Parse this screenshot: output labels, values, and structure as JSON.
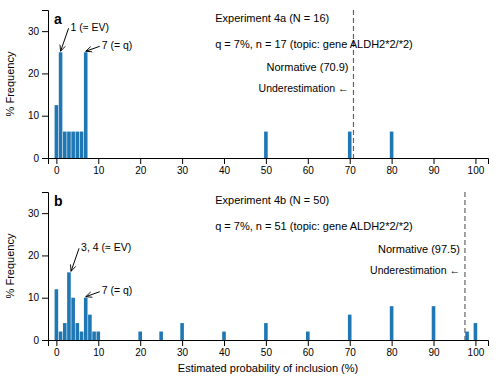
{
  "chart_data": [
    {
      "type": "bar",
      "panel_label": "a",
      "title": "Experiment 4a (N = 16)",
      "subtitle": "q = 7%, n = 17 (topic: gene ALDH2*2/*2)",
      "ylabel": "% Frequency",
      "x": [
        0,
        1,
        2,
        3,
        4,
        5,
        6,
        7,
        50,
        70,
        80
      ],
      "values": [
        12.5,
        25,
        6.25,
        6.25,
        6.25,
        6.25,
        6.25,
        25,
        6.25,
        6.25,
        6.25
      ],
      "xlim": [
        -2,
        103
      ],
      "xticks": [
        0,
        10,
        20,
        30,
        40,
        50,
        60,
        70,
        80,
        90,
        100
      ],
      "ylim": [
        0,
        35
      ],
      "yticks": [
        0,
        10,
        20,
        30
      ],
      "grid": false,
      "reference": {
        "x": 70.9,
        "label": "Normative (70.9)",
        "color": "#666666",
        "line_style": "dashed"
      },
      "note": "Underestimation ←",
      "annotations": [
        {
          "text": "1 (≈ EV)",
          "x": 1,
          "y": 25
        },
        {
          "text": "7 (= q)",
          "x": 7,
          "y": 25
        }
      ]
    },
    {
      "type": "bar",
      "panel_label": "b",
      "title": "Experiment 4b (N = 50)",
      "subtitle": "q = 7%, n = 51 (topic: gene ALDH2*2/*2)",
      "xlabel": "Estimated probability of inclusion (%)",
      "ylabel": "% Frequency",
      "x": [
        0,
        1,
        2,
        3,
        4,
        5,
        6,
        7,
        8,
        9,
        10,
        20,
        25,
        30,
        40,
        50,
        60,
        70,
        80,
        90,
        98,
        100
      ],
      "values": [
        12,
        2,
        4,
        16,
        10,
        4,
        2,
        10,
        6,
        2,
        2,
        2,
        2,
        4,
        2,
        4,
        2,
        6,
        8,
        8,
        2,
        4
      ],
      "xlim": [
        -2,
        103
      ],
      "xticks": [
        0,
        10,
        20,
        30,
        40,
        50,
        60,
        70,
        80,
        90,
        100
      ],
      "ylim": [
        0,
        35
      ],
      "yticks": [
        0,
        10,
        20,
        30
      ],
      "grid": false,
      "reference": {
        "x": 97.5,
        "label": "Normative (97.5)",
        "color": "#666666",
        "line_style": "dashed"
      },
      "note": "Underestimation ←",
      "annotations": [
        {
          "text": "3, 4 (≈ EV)",
          "x": 3.5,
          "y": 16
        },
        {
          "text": "7 (= q)",
          "x": 7,
          "y": 10
        }
      ]
    }
  ]
}
